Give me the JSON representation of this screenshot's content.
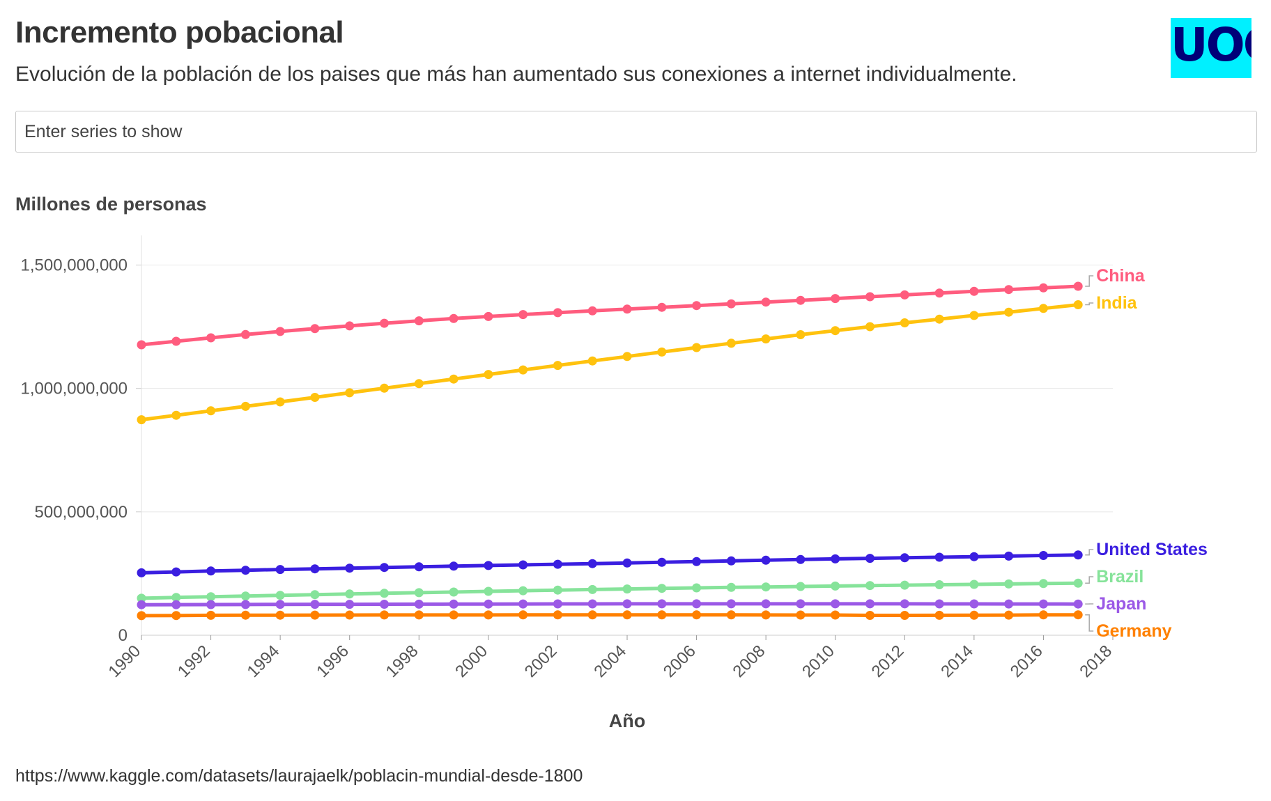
{
  "header": {
    "title": "Incremento pobacional",
    "subtitle": "Evolución de la población de los paises que más han aumentado sus conexiones a internet individualmente.",
    "logo_text": "UOC"
  },
  "search": {
    "placeholder": "Enter series to show"
  },
  "footer": {
    "source": "https://www.kaggle.com/datasets/laurajaelk/poblacin-mundial-desde-1800"
  },
  "chart_data": {
    "type": "line",
    "title": "Incremento pobacional",
    "ylabel": "Millones de personas",
    "xlabel": "Año",
    "xlim": [
      1990,
      2018
    ],
    "ylim": [
      0,
      1620000000
    ],
    "x_ticks": [
      "1990",
      "1992",
      "1994",
      "1996",
      "1998",
      "2000",
      "2002",
      "2004",
      "2006",
      "2008",
      "2010",
      "2012",
      "2014",
      "2016",
      "2018"
    ],
    "y_ticks": [
      {
        "value": 0,
        "label": "0"
      },
      {
        "value": 500000000,
        "label": "500,000,000"
      },
      {
        "value": 1000000000,
        "label": "1,000,000,000"
      },
      {
        "value": 1500000000,
        "label": "1,500,000,000"
      }
    ],
    "grid": "horizontal",
    "x": [
      1990,
      1991,
      1992,
      1993,
      1994,
      1995,
      1996,
      1997,
      1998,
      1999,
      2000,
      2001,
      2002,
      2003,
      2004,
      2005,
      2006,
      2007,
      2008,
      2009,
      2010,
      2011,
      2012,
      2013,
      2014,
      2015,
      2016,
      2017
    ],
    "series": [
      {
        "name": "China",
        "color": "#ff5c7e",
        "values": [
          1176880000,
          1191000000,
          1205200000,
          1218400000,
          1230700000,
          1242400000,
          1253500000,
          1264000000,
          1274000000,
          1283300000,
          1291600000,
          1299300000,
          1306900000,
          1314300000,
          1321500000,
          1328600000,
          1335700000,
          1342800000,
          1349900000,
          1357100000,
          1364300000,
          1371600000,
          1378900000,
          1386300000,
          1393500000,
          1400600000,
          1407500000,
          1414000000
        ]
      },
      {
        "name": "India",
        "color": "#ffc20e",
        "values": [
          873300000,
          891300000,
          909400000,
          927400000,
          945600000,
          963900000,
          982400000,
          1001000000,
          1019500000,
          1038000000,
          1056600000,
          1075000000,
          1093300000,
          1111500000,
          1129600000,
          1147600000,
          1165500000,
          1183200000,
          1200700000,
          1217700000,
          1234300000,
          1250300000,
          1265800000,
          1280800000,
          1295600000,
          1309100000,
          1324200000,
          1339200000
        ]
      },
      {
        "name": "United States",
        "color": "#3a1ee0",
        "values": [
          252800000,
          256500000,
          260300000,
          263400000,
          266300000,
          269100000,
          271800000,
          274500000,
          277200000,
          280000000,
          282400000,
          285000000,
          287600000,
          290100000,
          292800000,
          295500000,
          298400000,
          301200000,
          304100000,
          306800000,
          309300000,
          311600000,
          313900000,
          316100000,
          318400000,
          320700000,
          323100000,
          325100000
        ]
      },
      {
        "name": "Brazil",
        "color": "#86e39a",
        "values": [
          150000000,
          153200000,
          156200000,
          159000000,
          161800000,
          164500000,
          167200000,
          169900000,
          172500000,
          175000000,
          177700000,
          180300000,
          182800000,
          185200000,
          187500000,
          189800000,
          191900000,
          193900000,
          195700000,
          197500000,
          199300000,
          201100000,
          202800000,
          204500000,
          206100000,
          207700000,
          209300000,
          210900000
        ]
      },
      {
        "name": "Japan",
        "color": "#9b59e6",
        "values": [
          123500000,
          123900000,
          124200000,
          124500000,
          124900000,
          125200000,
          125400000,
          125700000,
          126000000,
          126200000,
          126500000,
          126700000,
          126900000,
          127100000,
          127200000,
          127300000,
          127300000,
          127300000,
          127400000,
          127300000,
          127300000,
          127300000,
          127200000,
          127100000,
          126900000,
          126800000,
          126600000,
          126500000
        ]
      },
      {
        "name": "Germany",
        "color": "#ff8000",
        "values": [
          79400000,
          79900000,
          80600000,
          81200000,
          81400000,
          81700000,
          81900000,
          82000000,
          82000000,
          82000000,
          82200000,
          82300000,
          82500000,
          82500000,
          82500000,
          82500000,
          82400000,
          82300000,
          82100000,
          81900000,
          81800000,
          80300000,
          80400000,
          80600000,
          80900000,
          81700000,
          82300000,
          82700000
        ]
      }
    ],
    "legend": "right-end labels"
  }
}
